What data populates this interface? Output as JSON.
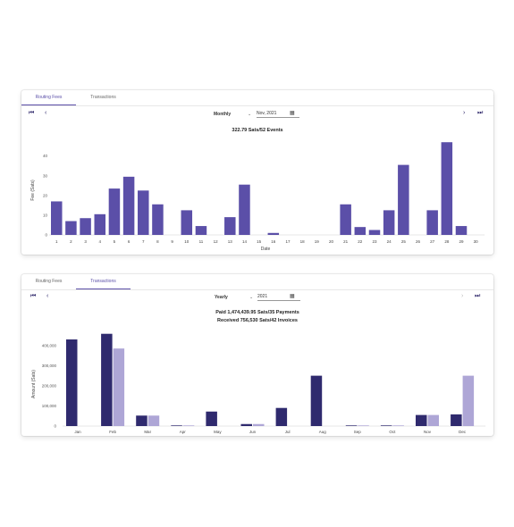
{
  "routing_panel": {
    "tabs": [
      {
        "label": "Routing Fees",
        "active": true
      },
      {
        "label": "Transactions",
        "active": false
      }
    ],
    "period": "Monthly",
    "date_value": "Nov, 2021",
    "summary": "322.79 Sats/52 Events",
    "icons": {
      "first": "skip-first-icon",
      "prev": "chevron-left-icon",
      "next": "chevron-right-icon",
      "last": "skip-last-icon",
      "calendar": "calendar-icon",
      "dropdown": "dropdown-caret-icon"
    }
  },
  "transactions_panel": {
    "tabs": [
      {
        "label": "Routing Fees",
        "active": false
      },
      {
        "label": "Transactions",
        "active": true
      }
    ],
    "period": "Yearly",
    "date_value": "2021",
    "summary_line1": "Paid 1,474,439.95 Sats/35 Payments",
    "summary_line2": "Received 756,530 Sats/42 Invoices"
  },
  "colors": {
    "accent": "#5b4fa8",
    "bar_primary": "#5b4fa8",
    "bar_dark": "#2f2a6e",
    "bar_light": "#aea6d6",
    "nav_icon": "#2b2468"
  },
  "chart_data": [
    {
      "type": "bar",
      "categories": [
        "1",
        "2",
        "3",
        "4",
        "5",
        "6",
        "7",
        "8",
        "9",
        "10",
        "11",
        "12",
        "13",
        "14",
        "15",
        "16",
        "17",
        "18",
        "19",
        "20",
        "21",
        "22",
        "23",
        "24",
        "25",
        "26",
        "27",
        "28",
        "29",
        "30"
      ],
      "values": [
        17,
        7,
        8.5,
        10.5,
        23.5,
        29.5,
        22.5,
        15.5,
        0,
        12.5,
        4.5,
        0,
        9,
        25.5,
        0,
        1,
        0,
        0,
        0,
        0,
        15.5,
        4,
        2.5,
        12.5,
        35.5,
        0,
        12.5,
        47,
        4.5,
        0
      ],
      "xlabel": "Date",
      "ylabel": "Fee (Sats)",
      "yticks": [
        0,
        10,
        20,
        30,
        40
      ],
      "ylim": [
        0,
        48
      ],
      "grid": false
    },
    {
      "type": "bar",
      "categories": [
        "Jan",
        "Feb",
        "Mar",
        "Apr",
        "May",
        "Jun",
        "Jul",
        "Aug",
        "Sep",
        "Oct",
        "Nov",
        "Dec"
      ],
      "series": [
        {
          "values": [
            430000,
            458000,
            52000,
            2000,
            72000,
            10000,
            90000,
            250000,
            3000,
            3000,
            55000,
            58000
          ]
        },
        {
          "values": [
            0,
            385000,
            52000,
            2000,
            0,
            10000,
            0,
            0,
            2000,
            3000,
            55000,
            250000
          ]
        }
      ],
      "ylabel": "Amount (Sats)",
      "yticks": [
        0,
        100000,
        200000,
        300000,
        400000
      ],
      "ytick_labels": [
        "0",
        "100,000",
        "200,000",
        "300,000",
        "400,000"
      ],
      "ylim": [
        0,
        470000
      ],
      "grid": false
    }
  ]
}
